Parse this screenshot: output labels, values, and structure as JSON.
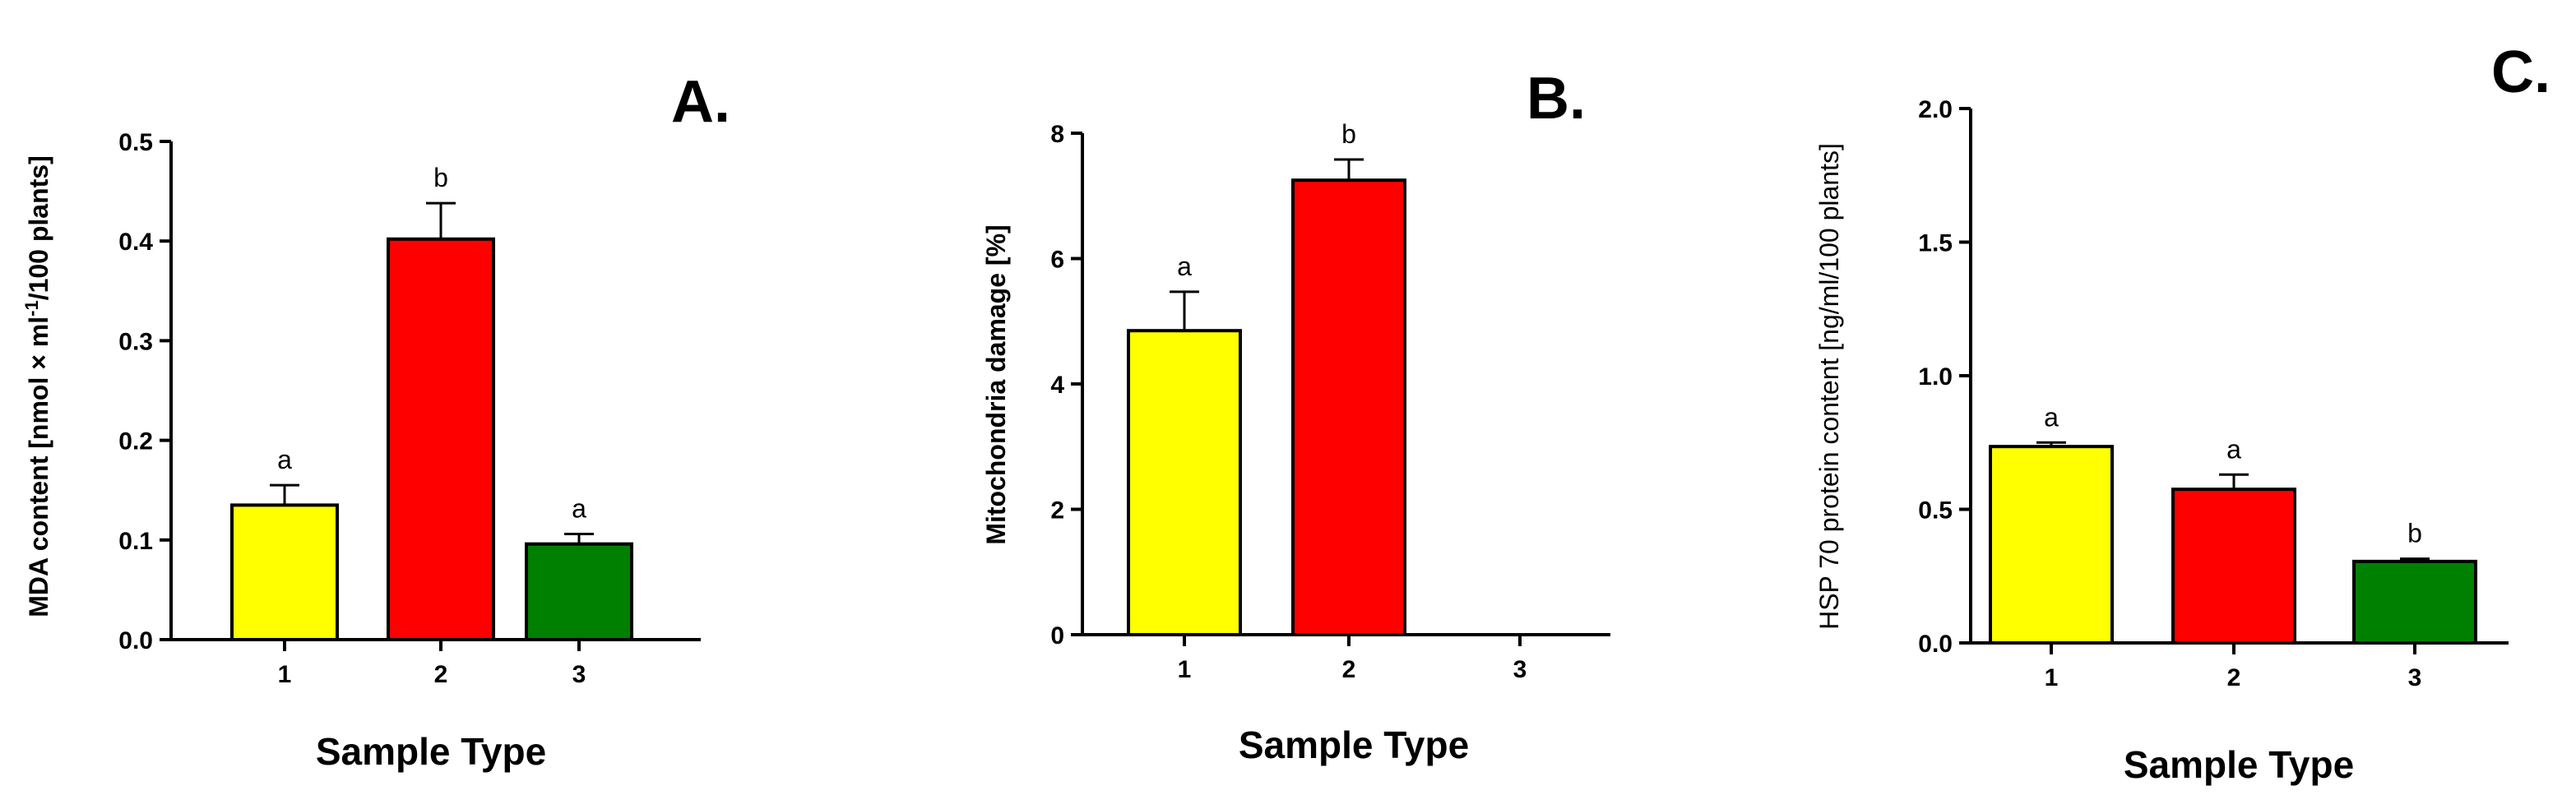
{
  "chart_data": [
    {
      "type": "bar",
      "panel": "A.",
      "categories": [
        "1",
        "2",
        "3"
      ],
      "values": [
        0.135,
        0.402,
        0.096
      ],
      "errors": [
        0.02,
        0.036,
        0.01
      ],
      "significance": [
        "a",
        "b",
        "a"
      ],
      "colors": [
        "#ffff00",
        "#ff0000",
        "#008000"
      ],
      "xlabel": "Sample Type",
      "ylabel": "MDA content [nmol × ml",
      "ylabel_sup": "-1",
      "ylabel_tail": "/100 plants]",
      "ylim": [
        0,
        0.5
      ],
      "yticks": [
        "0.0",
        "0.1",
        "0.2",
        "0.3",
        "0.4",
        "0.5"
      ],
      "ytick_values": [
        0,
        0.1,
        0.2,
        0.3,
        0.4,
        0.5
      ]
    },
    {
      "type": "bar",
      "panel": "B.",
      "categories": [
        "1",
        "2",
        "3"
      ],
      "values": [
        4.85,
        7.25,
        0
      ],
      "errors": [
        0.62,
        0.33,
        0
      ],
      "significance": [
        "a",
        "b",
        ""
      ],
      "colors": [
        "#ffff00",
        "#ff0000",
        "#008000"
      ],
      "xlabel": "Sample Type",
      "ylabel": "Mitochondria damage [%]",
      "ylim": [
        0,
        8
      ],
      "yticks": [
        "0",
        "2",
        "4",
        "6",
        "8"
      ],
      "ytick_values": [
        0,
        2,
        4,
        6,
        8
      ]
    },
    {
      "type": "bar",
      "panel": "C.",
      "categories": [
        "1",
        "2",
        "3"
      ],
      "values": [
        0.735,
        0.575,
        0.305
      ],
      "errors": [
        0.015,
        0.055,
        0.01
      ],
      "significance": [
        "a",
        "a",
        "b"
      ],
      "colors": [
        "#ffff00",
        "#ff0000",
        "#008000"
      ],
      "xlabel": "Sample Type",
      "ylabel": "HSP 70 protein content [ng/ml/100 plants]",
      "ylim": [
        0,
        2.0
      ],
      "yticks": [
        "0.0",
        "0.5",
        "1.0",
        "1.5",
        "2.0"
      ],
      "ytick_values": [
        0,
        0.5,
        1.0,
        1.5,
        2.0
      ]
    }
  ]
}
